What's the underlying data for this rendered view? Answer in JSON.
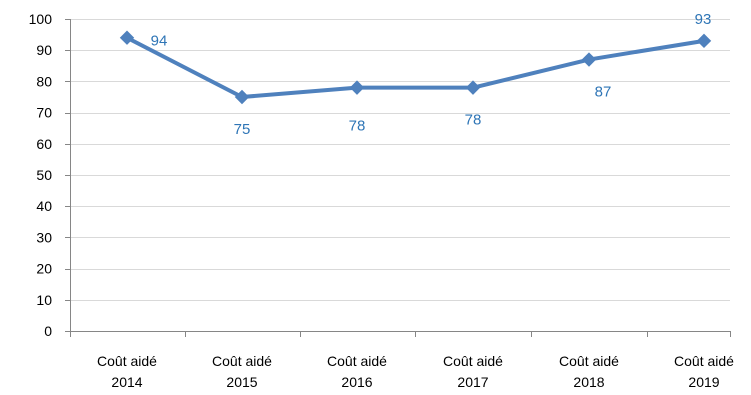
{
  "chart_data": {
    "type": "line",
    "title": "",
    "xlabel": "",
    "ylabel": "",
    "ylim": [
      0,
      100
    ],
    "y_ticks": [
      0,
      10,
      20,
      30,
      40,
      50,
      60,
      70,
      80,
      90,
      100
    ],
    "grid": "horizontal",
    "legend": "none",
    "categories": [
      [
        "Coût aidé",
        "2014"
      ],
      [
        "Coût aidé",
        "2015"
      ],
      [
        "Coût aidé",
        "2016"
      ],
      [
        "Coût aidé",
        "2017"
      ],
      [
        "Coût aidé",
        "2018"
      ],
      [
        "Coût aidé",
        "2019"
      ]
    ],
    "series": [
      {
        "values": [
          94,
          75,
          78,
          78,
          87,
          93
        ],
        "color": "#4F81BD",
        "label_color": "#2E75B6",
        "marker": "diamond"
      }
    ],
    "data_labels": [
      "94",
      "75",
      "78",
      "78",
      "87",
      "93"
    ]
  }
}
